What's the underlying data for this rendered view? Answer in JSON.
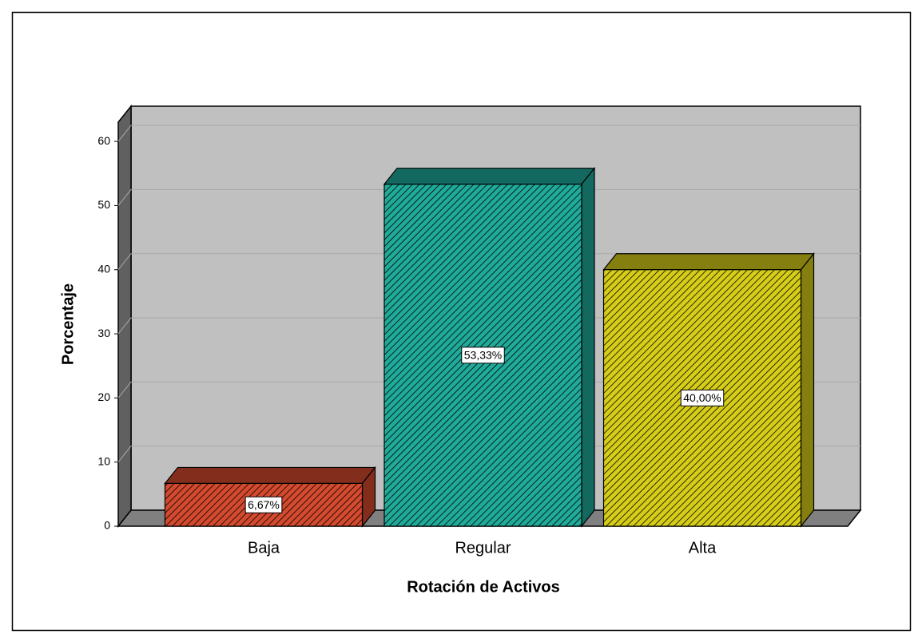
{
  "chart_data": {
    "type": "bar3d",
    "x_label": "Rotación de Activos",
    "y_label": "Porcentaje",
    "categories": [
      "Baja",
      "Regular",
      "Alta"
    ],
    "values": [
      6.67,
      53.33,
      40.0
    ],
    "value_labels": [
      "6,67%",
      "53,33%",
      "40,00%"
    ],
    "colors": [
      "#d44a2e",
      "#1faa99",
      "#d6cd18"
    ],
    "ylim": [
      0,
      63
    ],
    "yticks": [
      0,
      10,
      20,
      30,
      40,
      50,
      60
    ],
    "grid": true
  }
}
